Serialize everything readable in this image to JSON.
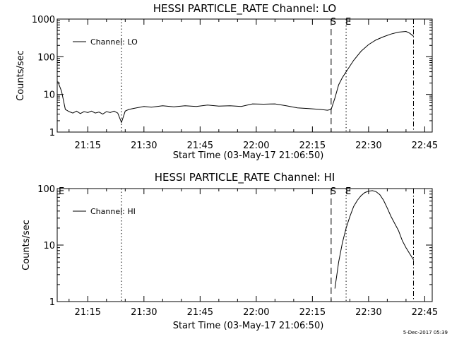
{
  "chart_data": [
    {
      "type": "line",
      "title": "HESSI PARTICLE_RATE Channel: LO",
      "xlabel": "Start Time (03-May-17 21:06:50)",
      "ylabel": "Counts/sec",
      "yscale": "log",
      "ylim": [
        1,
        1000
      ],
      "x_ticks": [
        "21:15",
        "21:30",
        "21:45",
        "22:00",
        "22:15",
        "22:30",
        "22:45"
      ],
      "y_ticks": [
        "1",
        "10",
        "100",
        "1000"
      ],
      "legend": {
        "position": "top-left",
        "entries": [
          "Channel: LO"
        ]
      },
      "markers": [
        {
          "label": "S",
          "time": "22:20",
          "style": "dashed"
        },
        {
          "label": "E",
          "time": "22:24",
          "style": "dotted"
        },
        {
          "label": "",
          "time": "21:24",
          "style": "dotted"
        },
        {
          "label": "",
          "time": "22:42",
          "style": "dash-dot"
        }
      ],
      "series": [
        {
          "x": [
            "21:07",
            "21:08",
            "21:09",
            "21:10",
            "21:11",
            "21:12",
            "21:13",
            "21:14",
            "21:15",
            "21:16",
            "21:17",
            "21:18",
            "21:19",
            "21:20",
            "21:21",
            "21:22",
            "21:23",
            "21:24",
            "21:25",
            "21:26",
            "21:28",
            "21:30",
            "21:32",
            "21:35",
            "21:38",
            "21:41",
            "21:44",
            "21:47",
            "21:50",
            "21:53",
            "21:56",
            "21:59",
            "22:02",
            "22:05",
            "22:08",
            "22:11",
            "22:14",
            "22:17",
            "22:19",
            "22:20",
            "22:21",
            "22:22",
            "22:23",
            "22:24",
            "22:26",
            "22:28",
            "22:30",
            "22:32",
            "22:34",
            "22:36",
            "22:38",
            "22:40",
            "22:41",
            "22:42"
          ],
          "y": [
            22,
            12,
            4,
            3.5,
            3.2,
            3.6,
            3.1,
            3.5,
            3.3,
            3.6,
            3.2,
            3.4,
            3.0,
            3.5,
            3.3,
            3.6,
            3.2,
            1.8,
            3.6,
            4,
            4.4,
            4.8,
            4.6,
            5,
            4.7,
            5,
            4.8,
            5.2,
            4.9,
            5,
            4.8,
            5.6,
            5.5,
            5.6,
            5,
            4.4,
            4.2,
            4,
            3.8,
            4,
            8,
            18,
            28,
            40,
            80,
            140,
            210,
            280,
            340,
            400,
            450,
            470,
            420,
            350
          ]
        }
      ]
    },
    {
      "type": "line",
      "title": "HESSI PARTICLE_RATE Channel: HI",
      "xlabel": "Start Time (03-May-17 21:06:50)",
      "ylabel": "Counts/sec",
      "yscale": "log",
      "ylim": [
        1,
        100
      ],
      "x_ticks": [
        "21:15",
        "21:30",
        "21:45",
        "22:00",
        "22:15",
        "22:30",
        "22:45"
      ],
      "y_ticks": [
        "1",
        "10",
        "100"
      ],
      "legend": {
        "position": "top-left",
        "entries": [
          "Channel: HI"
        ]
      },
      "markers": [
        {
          "label": "S",
          "time": "22:20",
          "style": "dashed"
        },
        {
          "label": "E",
          "time": "22:24",
          "style": "dotted"
        },
        {
          "label": "E",
          "time": "21:07",
          "style": "none"
        },
        {
          "label": "",
          "time": "21:24",
          "style": "dotted"
        },
        {
          "label": "",
          "time": "22:42",
          "style": "dash-dot"
        }
      ],
      "series": [
        {
          "x": [
            "22:21",
            "22:22",
            "22:23",
            "22:24",
            "22:25",
            "22:26",
            "22:27",
            "22:28",
            "22:29",
            "22:30",
            "22:31",
            "22:32",
            "22:33",
            "22:34",
            "22:35",
            "22:36",
            "22:37",
            "22:38",
            "22:39",
            "22:40",
            "22:41",
            "22:42"
          ],
          "y": [
            1.7,
            5,
            11,
            20,
            32,
            48,
            62,
            75,
            85,
            90,
            92,
            88,
            78,
            62,
            45,
            32,
            24,
            18,
            12,
            9,
            7,
            5.5
          ]
        }
      ]
    }
  ],
  "timestamp": "5-Dec-2017 05:39"
}
